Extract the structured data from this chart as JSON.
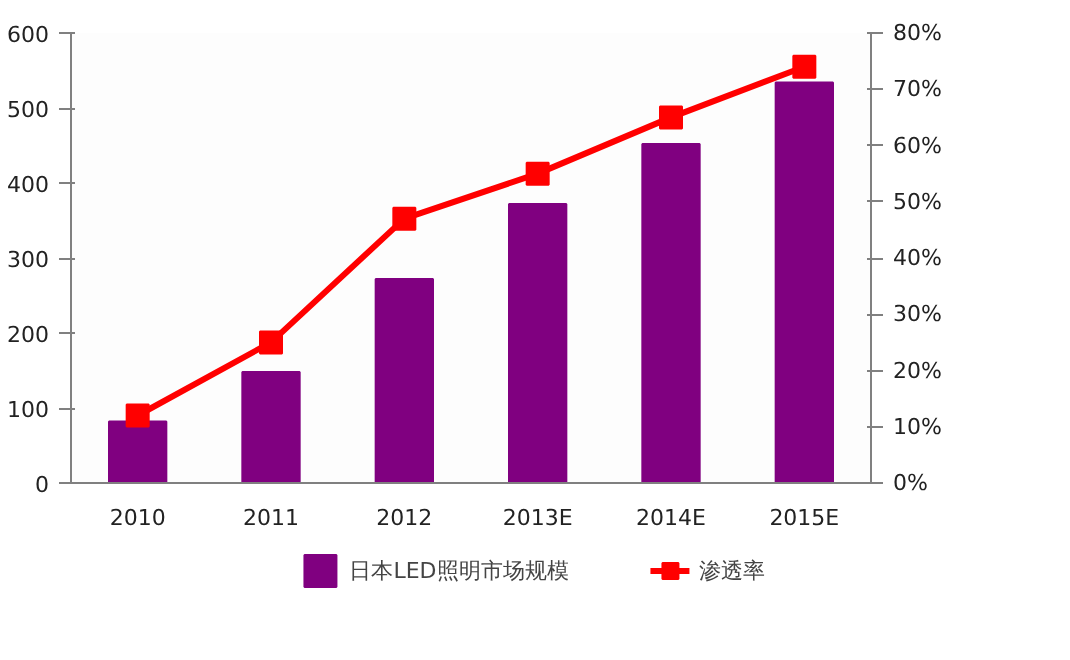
{
  "chart_data": {
    "type": "bar",
    "categories": [
      "2010",
      "2011",
      "2012",
      "2013E",
      "2014E",
      "2015E"
    ],
    "series": [
      {
        "name": "日本LED照明市场规模",
        "color": "#800080",
        "values": [
          82,
          148,
          272,
          372,
          452,
          534
        ]
      },
      {
        "name": "渗透率",
        "type": "line",
        "axis": "y2",
        "color": "#ff0000",
        "marker": "square",
        "values": [
          12,
          25,
          47,
          55,
          65,
          74
        ]
      }
    ],
    "ylim": [
      0,
      600
    ],
    "yticks": [
      0,
      100,
      200,
      300,
      400,
      500,
      600
    ],
    "y2lim": [
      0,
      80
    ],
    "y2ticks": [
      {
        "value": 0,
        "label": "0%"
      },
      {
        "value": 10,
        "label": "10%"
      },
      {
        "value": 20,
        "label": "20%"
      },
      {
        "value": 30,
        "label": "30%"
      },
      {
        "value": 40,
        "label": "40%"
      },
      {
        "value": 50,
        "label": "50%"
      },
      {
        "value": 60,
        "label": "60%"
      },
      {
        "value": 70,
        "label": "70%"
      },
      {
        "value": 80,
        "label": "80%"
      }
    ],
    "grid": false,
    "legend": "bottom"
  }
}
